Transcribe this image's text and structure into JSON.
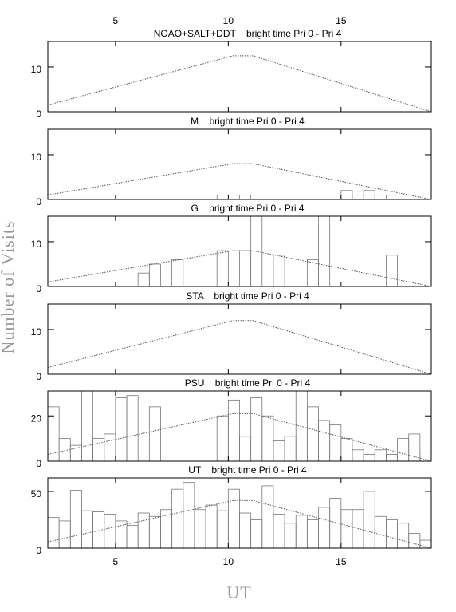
{
  "xlabel": "UT",
  "ylabel": "Number of Visits",
  "chart_data": [
    {
      "type": "line",
      "title": "NOAO+SALT+DDT    bright time Pri 0 - Pri 4",
      "line": {
        "x": [
          2,
          10.2,
          11.1,
          19
        ],
        "values": [
          1.5,
          12.5,
          12.5,
          0
        ],
        "color": "#555555"
      },
      "xlim": [
        2,
        19
      ],
      "xticks": [
        5,
        10,
        15
      ],
      "ylim": [
        0,
        15.7
      ],
      "yticks": [
        0,
        10
      ]
    },
    {
      "type": "histogram",
      "title": "M    bright time Pri 0 - Pri 4",
      "bins": [
        2,
        2.5,
        3,
        3.5,
        4,
        4.5,
        5,
        5.5,
        6,
        6.5,
        7,
        7.5,
        8,
        8.5,
        9,
        9.5,
        10,
        10.5,
        11,
        11.5,
        12,
        12.5,
        13,
        13.5,
        14,
        14.5,
        15,
        15.5,
        16,
        16.5,
        17,
        17.5,
        18,
        18.5,
        19
      ],
      "values": [
        0,
        0,
        0,
        0,
        0,
        0,
        0,
        0,
        0,
        0,
        0,
        0,
        0,
        0,
        0,
        1,
        0,
        1,
        0,
        0,
        0,
        0,
        0,
        0,
        0,
        0,
        2,
        0,
        2,
        1,
        0,
        0,
        0,
        0
      ],
      "color": "#777777",
      "line": {
        "x": [
          2,
          10.2,
          11.1,
          19
        ],
        "values": [
          1,
          8,
          8,
          0
        ],
        "color": "#555555"
      },
      "xlim": [
        2,
        19
      ],
      "xticks": [
        5,
        10,
        15
      ],
      "ylim": [
        0,
        15.7
      ],
      "yticks": [
        0,
        10
      ]
    },
    {
      "type": "histogram",
      "title": "G    bright time Pri 0 - Pri 4",
      "bins": [
        2,
        2.5,
        3,
        3.5,
        4,
        4.5,
        5,
        5.5,
        6,
        6.5,
        7,
        7.5,
        8,
        8.5,
        9,
        9.5,
        10,
        10.5,
        11,
        11.5,
        12,
        12.5,
        13,
        13.5,
        14,
        14.5,
        15,
        15.5,
        16,
        16.5,
        17,
        17.5,
        18,
        18.5,
        19
      ],
      "values": [
        0,
        0,
        0,
        0,
        0,
        0,
        0,
        0,
        3,
        5,
        0,
        6,
        0,
        0,
        0,
        8,
        0,
        8,
        16,
        0,
        7,
        0,
        0,
        6,
        16,
        0,
        0,
        0,
        0,
        0,
        7,
        0,
        0,
        0
      ],
      "color": "#777777",
      "line": {
        "x": [
          2,
          10.2,
          11.1,
          19
        ],
        "values": [
          1,
          8,
          8,
          0
        ],
        "color": "#555555"
      },
      "xlim": [
        2,
        19
      ],
      "xticks": [
        5,
        10,
        15
      ],
      "ylim": [
        0,
        15.7
      ],
      "yticks": [
        0,
        10
      ]
    },
    {
      "type": "line",
      "title": "STA    bright time Pri 0 - Pri 4",
      "line": {
        "x": [
          2,
          10.2,
          11.1,
          19
        ],
        "values": [
          1.5,
          12,
          12,
          0
        ],
        "color": "#555555"
      },
      "xlim": [
        2,
        19
      ],
      "xticks": [
        5,
        10,
        15
      ],
      "ylim": [
        0,
        15.7
      ],
      "yticks": [
        0,
        10
      ]
    },
    {
      "type": "histogram",
      "title": "PSU    bright time Pri 0 - Pri 4",
      "bins": [
        2,
        2.5,
        3,
        3.5,
        4,
        4.5,
        5,
        5.5,
        6,
        6.5,
        7,
        7.5,
        8,
        8.5,
        9,
        9.5,
        10,
        10.5,
        11,
        11.5,
        12,
        12.5,
        13,
        13.5,
        14,
        14.5,
        15,
        15.5,
        16,
        16.5,
        17,
        17.5,
        18,
        18.5,
        19
      ],
      "values": [
        24,
        10,
        7,
        31,
        10,
        12,
        28,
        29,
        0,
        24,
        0,
        0,
        0,
        0,
        0,
        20,
        27,
        11,
        28,
        20,
        9,
        11,
        31,
        24,
        18,
        16,
        10,
        5,
        3,
        5,
        3,
        10,
        12,
        4
      ],
      "color": "#777777",
      "line": {
        "x": [
          2,
          10.2,
          11.1,
          19
        ],
        "values": [
          3,
          21,
          21,
          0
        ],
        "color": "#555555"
      },
      "xlim": [
        2,
        19
      ],
      "xticks": [
        5,
        10,
        15
      ],
      "ylim": [
        0,
        31
      ],
      "yticks": [
        0,
        20
      ]
    },
    {
      "type": "histogram",
      "title": "UT    bright time Pri 0 - Pri 4",
      "bins": [
        2,
        2.5,
        3,
        3.5,
        4,
        4.5,
        5,
        5.5,
        6,
        6.5,
        7,
        7.5,
        8,
        8.5,
        9,
        9.5,
        10,
        10.5,
        11,
        11.5,
        12,
        12.5,
        13,
        13.5,
        14,
        14.5,
        15,
        15.5,
        16,
        16.5,
        17,
        17.5,
        18,
        18.5,
        19
      ],
      "values": [
        27,
        24,
        51,
        33,
        32,
        30,
        24,
        20,
        31,
        28,
        34,
        52,
        58,
        34,
        38,
        33,
        52,
        31,
        25,
        55,
        30,
        22,
        29,
        25,
        36,
        44,
        34,
        34,
        50,
        28,
        25,
        22,
        13,
        7
      ],
      "color": "#777777",
      "line": {
        "x": [
          2,
          10.2,
          11.1,
          19
        ],
        "values": [
          5.5,
          42,
          42,
          0
        ],
        "color": "#555555"
      },
      "xlim": [
        2,
        19
      ],
      "xticks": [
        5,
        10,
        15
      ],
      "ylim": [
        0,
        62
      ],
      "yticks": [
        0,
        50
      ]
    }
  ]
}
